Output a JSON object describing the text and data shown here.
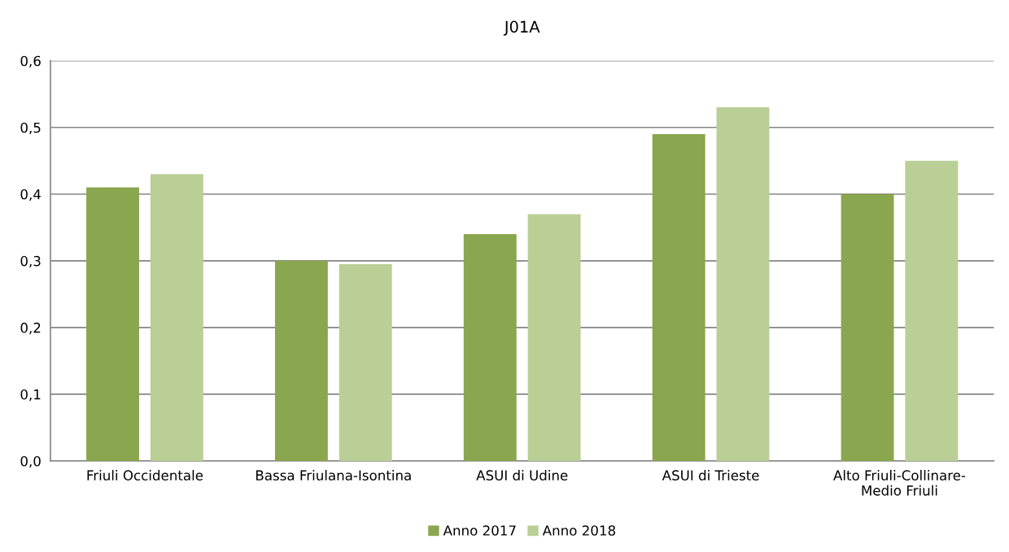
{
  "chart_data": {
    "type": "bar",
    "title": "J01A",
    "categories": [
      "Friuli Occidentale",
      "Bassa Friulana-Isontina",
      "ASUI di Udine",
      "ASUI di Trieste",
      "Alto Friuli-Collinare-\nMedio Friuli"
    ],
    "series": [
      {
        "name": "Anno 2017",
        "color": "#8aa64e",
        "values": [
          0.41,
          0.3,
          0.34,
          0.49,
          0.4
        ]
      },
      {
        "name": "Anno 2018",
        "color": "#b9cf96",
        "values": [
          0.43,
          0.295,
          0.37,
          0.53,
          0.45
        ]
      }
    ],
    "ylim": [
      0,
      0.6
    ],
    "yticks": [
      {
        "value": 0,
        "label": "0,0"
      },
      {
        "value": 0.1,
        "label": "0,1"
      },
      {
        "value": 0.2,
        "label": "0,2"
      },
      {
        "value": 0.3,
        "label": "0,3"
      },
      {
        "value": 0.4,
        "label": "0,4"
      },
      {
        "value": 0.5,
        "label": "0,5"
      },
      {
        "value": 0.6,
        "label": "0,6"
      }
    ],
    "grid": "y",
    "legend": "bottom"
  }
}
